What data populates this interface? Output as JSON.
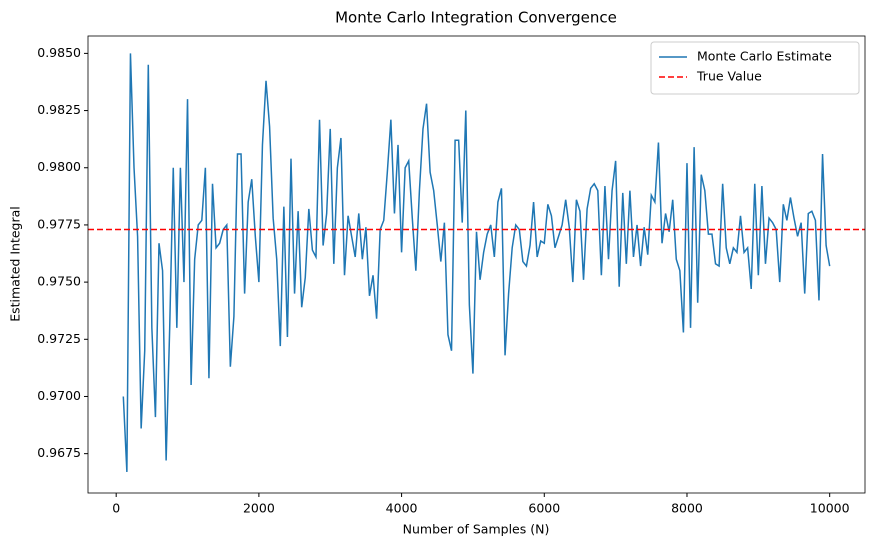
{
  "chart_data": {
    "type": "line",
    "title": "Monte Carlo Integration Convergence",
    "x_label": "Number of Samples (N)",
    "y_label": "Estimated Integral",
    "x": [
      100,
      150,
      200,
      250,
      300,
      350,
      400,
      450,
      500,
      550,
      600,
      650,
      700,
      750,
      800,
      850,
      900,
      950,
      1000,
      1050,
      1100,
      1150,
      1200,
      1250,
      1300,
      1350,
      1400,
      1450,
      1500,
      1550,
      1600,
      1650,
      1700,
      1750,
      1800,
      1850,
      1900,
      1950,
      2000,
      2050,
      2100,
      2150,
      2200,
      2250,
      2300,
      2350,
      2400,
      2450,
      2500,
      2550,
      2600,
      2650,
      2700,
      2750,
      2800,
      2850,
      2900,
      2950,
      3000,
      3050,
      3100,
      3150,
      3200,
      3250,
      3300,
      3350,
      3400,
      3450,
      3500,
      3550,
      3600,
      3650,
      3700,
      3750,
      3800,
      3850,
      3900,
      3950,
      4000,
      4050,
      4100,
      4150,
      4200,
      4250,
      4300,
      4350,
      4400,
      4450,
      4500,
      4550,
      4600,
      4650,
      4700,
      4750,
      4800,
      4850,
      4900,
      4950,
      5000,
      5050,
      5100,
      5150,
      5200,
      5250,
      5300,
      5350,
      5400,
      5450,
      5500,
      5550,
      5600,
      5650,
      5700,
      5750,
      5800,
      5850,
      5900,
      5950,
      6000,
      6050,
      6100,
      6150,
      6200,
      6250,
      6300,
      6350,
      6400,
      6450,
      6500,
      6550,
      6600,
      6650,
      6700,
      6750,
      6800,
      6850,
      6900,
      6950,
      7000,
      7050,
      7100,
      7150,
      7200,
      7250,
      7300,
      7350,
      7400,
      7450,
      7500,
      7550,
      7600,
      7650,
      7700,
      7750,
      7800,
      7850,
      7900,
      7950,
      8000,
      8050,
      8100,
      8150,
      8200,
      8250,
      8300,
      8350,
      8400,
      8450,
      8500,
      8550,
      8600,
      8650,
      8700,
      8750,
      8800,
      8850,
      8900,
      8950,
      9000,
      9050,
      9100,
      9150,
      9200,
      9250,
      9300,
      9350,
      9400,
      9450,
      9500,
      9550,
      9600,
      9650,
      9700,
      9750,
      9800,
      9850,
      9900,
      9950,
      10000
    ],
    "series": [
      {
        "name": "Monte Carlo Estimate",
        "color": "#1f77b4",
        "values": [
          0.97,
          0.9667,
          0.985,
          0.98,
          0.977,
          0.9686,
          0.972,
          0.9845,
          0.973,
          0.9691,
          0.9767,
          0.9755,
          0.9672,
          0.973,
          0.98,
          0.973,
          0.98,
          0.975,
          0.983,
          0.9705,
          0.976,
          0.9775,
          0.9777,
          0.98,
          0.9708,
          0.9793,
          0.9765,
          0.9767,
          0.9773,
          0.9775,
          0.9713,
          0.9735,
          0.9806,
          0.9806,
          0.9745,
          0.9785,
          0.9795,
          0.977,
          0.975,
          0.981,
          0.9838,
          0.9818,
          0.9778,
          0.976,
          0.9722,
          0.9783,
          0.9726,
          0.9804,
          0.9745,
          0.9781,
          0.9739,
          0.9752,
          0.9782,
          0.9764,
          0.9761,
          0.9821,
          0.9766,
          0.978,
          0.9817,
          0.9758,
          0.98,
          0.9813,
          0.9753,
          0.9779,
          0.977,
          0.9761,
          0.978,
          0.976,
          0.9774,
          0.9744,
          0.9753,
          0.9734,
          0.9773,
          0.9777,
          0.9798,
          0.9821,
          0.978,
          0.981,
          0.9763,
          0.98,
          0.9803,
          0.9778,
          0.9755,
          0.979,
          0.9817,
          0.9828,
          0.9798,
          0.979,
          0.9775,
          0.9759,
          0.9776,
          0.9727,
          0.972,
          0.9812,
          0.9812,
          0.9776,
          0.9825,
          0.974,
          0.971,
          0.9772,
          0.9751,
          0.9763,
          0.9771,
          0.9775,
          0.9761,
          0.9785,
          0.9791,
          0.9718,
          0.9745,
          0.9765,
          0.9775,
          0.9773,
          0.9759,
          0.9757,
          0.9766,
          0.9785,
          0.9761,
          0.9768,
          0.9767,
          0.9784,
          0.9779,
          0.9765,
          0.977,
          0.9775,
          0.9786,
          0.9774,
          0.975,
          0.9786,
          0.9781,
          0.9751,
          0.9782,
          0.9791,
          0.9793,
          0.979,
          0.9753,
          0.9792,
          0.976,
          0.979,
          0.9803,
          0.9748,
          0.9789,
          0.9758,
          0.979,
          0.9761,
          0.9775,
          0.9757,
          0.9774,
          0.9762,
          0.9788,
          0.9785,
          0.9811,
          0.9767,
          0.978,
          0.9772,
          0.9786,
          0.976,
          0.9755,
          0.9728,
          0.9802,
          0.973,
          0.9809,
          0.9741,
          0.9797,
          0.979,
          0.9771,
          0.9771,
          0.9758,
          0.9757,
          0.9793,
          0.9765,
          0.9758,
          0.9765,
          0.9763,
          0.9779,
          0.9763,
          0.9765,
          0.9747,
          0.9793,
          0.9753,
          0.9792,
          0.9758,
          0.9778,
          0.9776,
          0.9773,
          0.975,
          0.9784,
          0.9777,
          0.9787,
          0.9778,
          0.977,
          0.9776,
          0.9745,
          0.978,
          0.9781,
          0.9777,
          0.9742,
          0.9806,
          0.9766,
          0.9757
        ]
      }
    ],
    "reference_line": {
      "name": "True Value",
      "value": 0.9773,
      "color": "#ff0000",
      "style": "dashed"
    },
    "xlim": [
      -395,
      10495
    ],
    "ylim": [
      0.96578,
      0.98576
    ],
    "xticks": [
      0,
      2000,
      4000,
      6000,
      8000,
      10000
    ],
    "yticks": [
      0.9675,
      {
        "value": 0.97,
        "label": "0.9700"
      },
      0.9725,
      {
        "value": 0.975,
        "label": "0.9750"
      },
      0.9775,
      {
        "value": 0.98,
        "label": "0.9800"
      },
      0.9825,
      {
        "value": 0.985,
        "label": "0.9850"
      }
    ],
    "grid": false,
    "legend": "upper right"
  }
}
